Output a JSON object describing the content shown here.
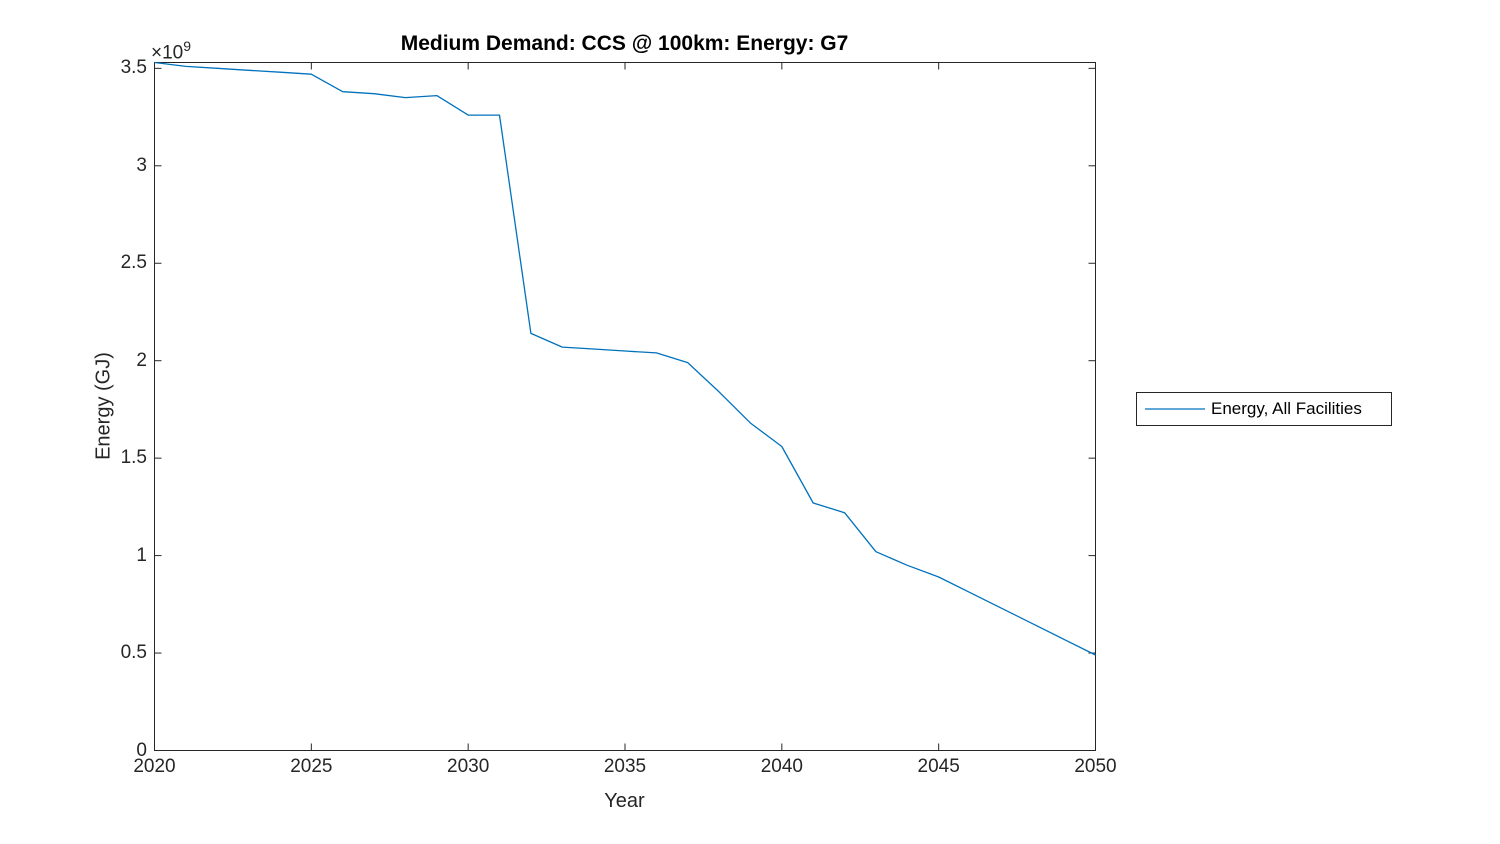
{
  "chart_data": {
    "type": "line",
    "title": "Medium Demand: CCS @ 100km: Energy: G7",
    "xlabel": "Year",
    "ylabel": "Energy (GJ)",
    "y_exponent_base": "×10",
    "y_exponent_power": "9",
    "y_unit_note": "values in GJ × 10^9",
    "grid": false,
    "background": "#ffffff",
    "axis_color": "#262626",
    "xlim": [
      2020,
      2050
    ],
    "ylim_e9": [
      0,
      3.53
    ],
    "xticks": [
      2020,
      2025,
      2030,
      2035,
      2040,
      2045,
      2050
    ],
    "xtick_labels": [
      "2020",
      "2025",
      "2030",
      "2035",
      "2040",
      "2045",
      "2050"
    ],
    "yticks_e9": [
      0,
      0.5,
      1,
      1.5,
      2,
      2.5,
      3,
      3.5
    ],
    "ytick_labels": [
      "0",
      "0.5",
      "1",
      "1.5",
      "2",
      "2.5",
      "3",
      "3.5"
    ],
    "legend_position": "right-outside",
    "series": [
      {
        "name": "Energy, All Facilities",
        "color": "#0072BD",
        "x": [
          2020,
          2021,
          2022,
          2023,
          2024,
          2025,
          2026,
          2027,
          2028,
          2029,
          2030,
          2031,
          2032,
          2033,
          2034,
          2035,
          2036,
          2037,
          2038,
          2039,
          2040,
          2041,
          2042,
          2043,
          2044,
          2045,
          2046,
          2047,
          2048,
          2049,
          2050
        ],
        "values_GJ_e9": [
          3.53,
          3.51,
          3.5,
          3.49,
          3.48,
          3.47,
          3.38,
          3.37,
          3.35,
          3.36,
          3.26,
          3.26,
          2.14,
          2.07,
          2.06,
          2.05,
          2.04,
          1.99,
          1.84,
          1.68,
          1.56,
          1.27,
          1.22,
          1.02,
          0.95,
          0.89,
          0.81,
          0.73,
          0.65,
          0.57,
          0.49
        ]
      }
    ]
  }
}
